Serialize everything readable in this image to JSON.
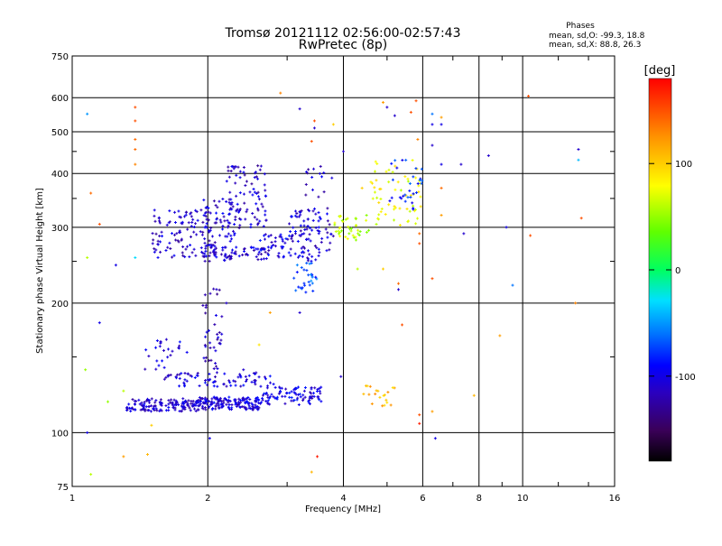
{
  "chart_data": {
    "type": "scatter",
    "title": "Tromsø 20121112 02:56:00-02:57:43",
    "subtitle": "RwPretec (8p)",
    "xlabel": "Frequency [MHz]",
    "ylabel": "Stationary phase Virtual Height [km]",
    "x_scale": "log",
    "y_scale": "log",
    "xlim": [
      1,
      16
    ],
    "ylim": [
      75,
      750
    ],
    "x_ticks": [
      1,
      2,
      4,
      6,
      8,
      10,
      16
    ],
    "x_tick_labels": [
      "1",
      "2",
      "4",
      "6",
      "8",
      "10",
      "16"
    ],
    "y_ticks": [
      75,
      100,
      200,
      300,
      400,
      500,
      600,
      750
    ],
    "y_tick_labels": [
      "75",
      "100",
      "200",
      "300",
      "400",
      "500",
      "600",
      "750"
    ],
    "grid": true,
    "stats": {
      "title": "Phases",
      "line_o": "mean, sd,O: -99.3, 18.8",
      "line_x": "mean, sd,X: 88.8, 26.3"
    },
    "colorbar": {
      "label": "[deg]",
      "range": [
        -180,
        180
      ],
      "ticks": [
        100,
        0,
        -100
      ],
      "tick_labels": [
        "100",
        "0",
        "-100"
      ],
      "colormap": "rainbow"
    },
    "clusters": [
      {
        "xmin": 1.32,
        "xmax": 1.9,
        "ymin": 112,
        "ymax": 120,
        "phase": -110,
        "n": 140
      },
      {
        "xmin": 1.9,
        "xmax": 2.65,
        "ymin": 113,
        "ymax": 121,
        "phase": -105,
        "n": 160
      },
      {
        "xmin": 2.65,
        "xmax": 3.6,
        "ymin": 116,
        "ymax": 128,
        "phase": -100,
        "n": 90
      },
      {
        "xmin": 1.6,
        "xmax": 2.8,
        "ymin": 128,
        "ymax": 138,
        "phase": -105,
        "n": 80
      },
      {
        "xmin": 1.45,
        "xmax": 1.8,
        "ymin": 140,
        "ymax": 165,
        "phase": -105,
        "n": 25
      },
      {
        "xmin": 1.95,
        "xmax": 2.15,
        "ymin": 140,
        "ymax": 220,
        "phase": -115,
        "n": 40
      },
      {
        "xmin": 1.5,
        "xmax": 2.05,
        "ymin": 255,
        "ymax": 330,
        "phase": -110,
        "n": 110
      },
      {
        "xmin": 1.95,
        "xmax": 2.35,
        "ymin": 250,
        "ymax": 350,
        "phase": -108,
        "n": 90
      },
      {
        "xmin": 2.2,
        "xmax": 2.7,
        "ymin": 300,
        "ymax": 420,
        "phase": -112,
        "n": 80
      },
      {
        "xmin": 2.0,
        "xmax": 2.75,
        "ymin": 250,
        "ymax": 270,
        "phase": -108,
        "n": 50
      },
      {
        "xmin": 2.6,
        "xmax": 3.1,
        "ymin": 255,
        "ymax": 290,
        "phase": -100,
        "n": 40
      },
      {
        "xmin": 3.0,
        "xmax": 3.55,
        "ymin": 250,
        "ymax": 330,
        "phase": -105,
        "n": 70
      },
      {
        "xmin": 3.1,
        "xmax": 3.5,
        "ymin": 210,
        "ymax": 250,
        "phase": -70,
        "n": 30
      },
      {
        "xmin": 3.3,
        "xmax": 3.8,
        "ymin": 260,
        "ymax": 420,
        "phase": -110,
        "n": 40
      },
      {
        "xmin": 3.8,
        "xmax": 4.6,
        "ymin": 280,
        "ymax": 320,
        "phase": 60,
        "n": 40
      },
      {
        "xmin": 4.6,
        "xmax": 6.0,
        "ymin": 300,
        "ymax": 430,
        "phase": 75,
        "n": 60
      },
      {
        "xmin": 5.0,
        "xmax": 6.0,
        "ymin": 330,
        "ymax": 430,
        "phase": -80,
        "n": 30
      },
      {
        "xmin": 4.4,
        "xmax": 5.2,
        "ymin": 115,
        "ymax": 130,
        "phase": 110,
        "n": 20
      }
    ],
    "scattered_points": [
      {
        "x": 1.08,
        "y": 550,
        "phase": -50
      },
      {
        "x": 1.1,
        "y": 360,
        "phase": 140
      },
      {
        "x": 1.15,
        "y": 305,
        "phase": 150
      },
      {
        "x": 1.08,
        "y": 255,
        "phase": 60
      },
      {
        "x": 1.15,
        "y": 180,
        "phase": -100
      },
      {
        "x": 1.25,
        "y": 245,
        "phase": -100
      },
      {
        "x": 1.38,
        "y": 570,
        "phase": 150
      },
      {
        "x": 1.38,
        "y": 530,
        "phase": 150
      },
      {
        "x": 1.38,
        "y": 480,
        "phase": 140
      },
      {
        "x": 1.38,
        "y": 455,
        "phase": 140
      },
      {
        "x": 1.38,
        "y": 420,
        "phase": 130
      },
      {
        "x": 1.38,
        "y": 255,
        "phase": -30
      },
      {
        "x": 1.07,
        "y": 140,
        "phase": 50
      },
      {
        "x": 1.08,
        "y": 100,
        "phase": -100
      },
      {
        "x": 1.1,
        "y": 80,
        "phase": 60
      },
      {
        "x": 1.2,
        "y": 118,
        "phase": 50
      },
      {
        "x": 1.3,
        "y": 88,
        "phase": 120
      },
      {
        "x": 1.47,
        "y": 89,
        "phase": 110
      },
      {
        "x": 1.5,
        "y": 104,
        "phase": 100
      },
      {
        "x": 1.3,
        "y": 125,
        "phase": 60
      },
      {
        "x": 2.02,
        "y": 97,
        "phase": -100
      },
      {
        "x": 2.9,
        "y": 615,
        "phase": 130
      },
      {
        "x": 3.2,
        "y": 565,
        "phase": -110
      },
      {
        "x": 3.45,
        "y": 530,
        "phase": 150
      },
      {
        "x": 3.45,
        "y": 510,
        "phase": -110
      },
      {
        "x": 3.4,
        "y": 475,
        "phase": 150
      },
      {
        "x": 3.8,
        "y": 520,
        "phase": 100
      },
      {
        "x": 4.0,
        "y": 450,
        "phase": -110
      },
      {
        "x": 4.4,
        "y": 370,
        "phase": 100
      },
      {
        "x": 4.9,
        "y": 585,
        "phase": 120
      },
      {
        "x": 5.0,
        "y": 570,
        "phase": -110
      },
      {
        "x": 5.2,
        "y": 545,
        "phase": -110
      },
      {
        "x": 5.65,
        "y": 555,
        "phase": 150
      },
      {
        "x": 5.8,
        "y": 590,
        "phase": 150
      },
      {
        "x": 5.85,
        "y": 480,
        "phase": 130
      },
      {
        "x": 6.3,
        "y": 550,
        "phase": -60
      },
      {
        "x": 6.3,
        "y": 520,
        "phase": -100
      },
      {
        "x": 6.6,
        "y": 540,
        "phase": 120
      },
      {
        "x": 6.6,
        "y": 520,
        "phase": -100
      },
      {
        "x": 6.3,
        "y": 465,
        "phase": -110
      },
      {
        "x": 6.6,
        "y": 420,
        "phase": -100
      },
      {
        "x": 7.3,
        "y": 420,
        "phase": -110
      },
      {
        "x": 8.4,
        "y": 440,
        "phase": -110
      },
      {
        "x": 6.6,
        "y": 370,
        "phase": 140
      },
      {
        "x": 6.6,
        "y": 320,
        "phase": 120
      },
      {
        "x": 7.4,
        "y": 290,
        "phase": -110
      },
      {
        "x": 9.2,
        "y": 300,
        "phase": -100
      },
      {
        "x": 10.4,
        "y": 287,
        "phase": 150
      },
      {
        "x": 13.3,
        "y": 455,
        "phase": -110
      },
      {
        "x": 13.3,
        "y": 430,
        "phase": -40
      },
      {
        "x": 13.5,
        "y": 315,
        "phase": 150
      },
      {
        "x": 9.5,
        "y": 220,
        "phase": -60
      },
      {
        "x": 13.1,
        "y": 200,
        "phase": 130
      },
      {
        "x": 8.9,
        "y": 168,
        "phase": 120
      },
      {
        "x": 5.3,
        "y": 222,
        "phase": 140
      },
      {
        "x": 5.3,
        "y": 215,
        "phase": -110
      },
      {
        "x": 6.3,
        "y": 228,
        "phase": 150
      },
      {
        "x": 5.4,
        "y": 178,
        "phase": 150
      },
      {
        "x": 5.9,
        "y": 290,
        "phase": 140
      },
      {
        "x": 5.9,
        "y": 275,
        "phase": 150
      },
      {
        "x": 5.9,
        "y": 110,
        "phase": 150
      },
      {
        "x": 5.9,
        "y": 105,
        "phase": 170
      },
      {
        "x": 6.3,
        "y": 112,
        "phase": 120
      },
      {
        "x": 6.4,
        "y": 97,
        "phase": -100
      },
      {
        "x": 7.8,
        "y": 122,
        "phase": 110
      },
      {
        "x": 3.5,
        "y": 88,
        "phase": 170
      },
      {
        "x": 3.4,
        "y": 81,
        "phase": 110
      },
      {
        "x": 3.95,
        "y": 135,
        "phase": -110
      },
      {
        "x": 10.3,
        "y": 605,
        "phase": 150
      },
      {
        "x": 2.4,
        "y": 140,
        "phase": -110
      },
      {
        "x": 2.75,
        "y": 190,
        "phase": 120
      },
      {
        "x": 2.6,
        "y": 160,
        "phase": 90
      },
      {
        "x": 3.2,
        "y": 190,
        "phase": -110
      },
      {
        "x": 2.2,
        "y": 200,
        "phase": -110
      },
      {
        "x": 4.3,
        "y": 240,
        "phase": 60
      },
      {
        "x": 4.9,
        "y": 240,
        "phase": 100
      }
    ]
  }
}
